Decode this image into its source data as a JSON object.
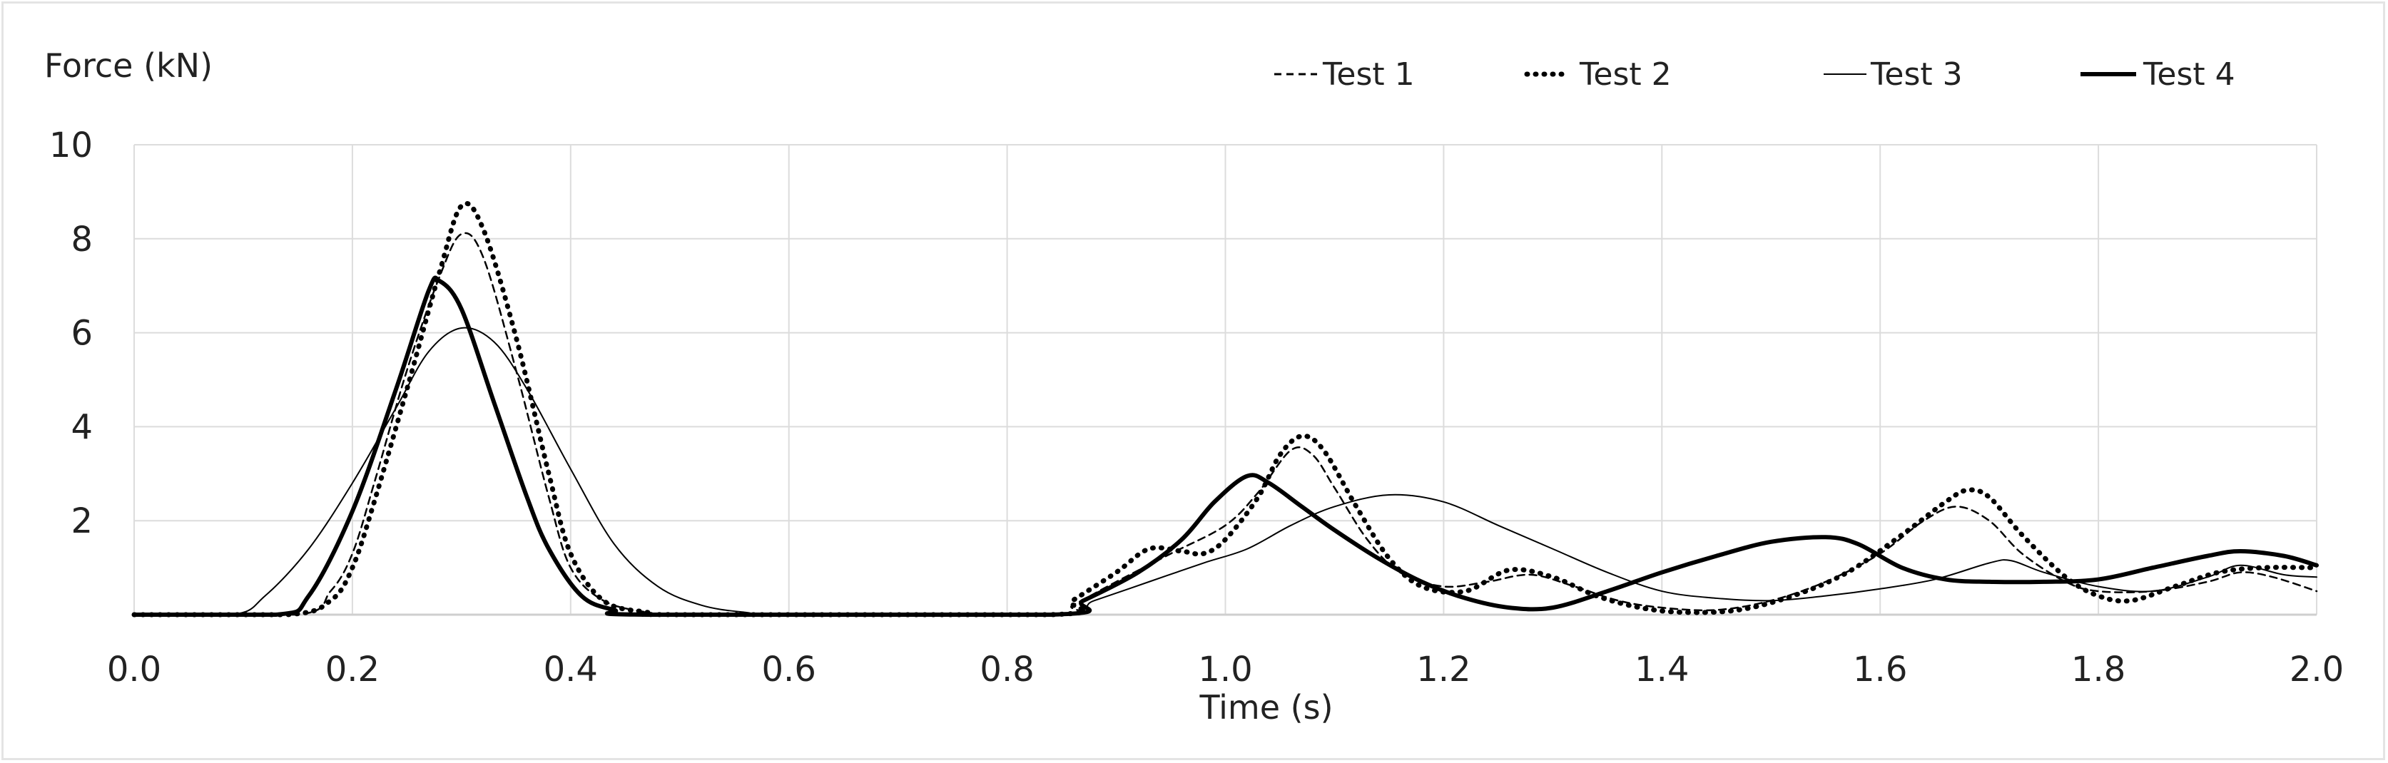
{
  "chart_data": {
    "type": "line",
    "title": "",
    "ylabel": "Force (kN)",
    "xlabel": "Time (s)",
    "xlim": [
      0.0,
      2.0
    ],
    "ylim": [
      0,
      10
    ],
    "x_ticks": [
      "0.0",
      "0.2",
      "0.4",
      "0.6",
      "0.8",
      "1.0",
      "1.2",
      "1.4",
      "1.6",
      "1.8",
      "2.0"
    ],
    "y_ticks": [
      "2",
      "4",
      "6",
      "8",
      "10"
    ],
    "grid": true,
    "legend_position": "top",
    "series": [
      {
        "name": "Test 1",
        "style": "dashed",
        "points": [
          [
            0.0,
            0
          ],
          [
            0.15,
            0
          ],
          [
            0.18,
            0.5
          ],
          [
            0.2,
            1.3
          ],
          [
            0.22,
            2.8
          ],
          [
            0.25,
            5.2
          ],
          [
            0.28,
            7.2
          ],
          [
            0.3,
            8.1
          ],
          [
            0.32,
            7.6
          ],
          [
            0.35,
            5.2
          ],
          [
            0.38,
            2.5
          ],
          [
            0.4,
            1.0
          ],
          [
            0.43,
            0.3
          ],
          [
            0.47,
            0.05
          ],
          [
            0.5,
            0
          ],
          [
            0.84,
            0
          ],
          [
            0.86,
            0.2
          ],
          [
            0.9,
            0.7
          ],
          [
            0.95,
            1.3
          ],
          [
            1.0,
            1.9
          ],
          [
            1.03,
            2.6
          ],
          [
            1.06,
            3.5
          ],
          [
            1.08,
            3.4
          ],
          [
            1.1,
            2.7
          ],
          [
            1.13,
            1.6
          ],
          [
            1.16,
            0.9
          ],
          [
            1.2,
            0.6
          ],
          [
            1.24,
            0.7
          ],
          [
            1.28,
            0.85
          ],
          [
            1.32,
            0.6
          ],
          [
            1.36,
            0.3
          ],
          [
            1.4,
            0.15
          ],
          [
            1.45,
            0.1
          ],
          [
            1.5,
            0.3
          ],
          [
            1.55,
            0.7
          ],
          [
            1.6,
            1.3
          ],
          [
            1.64,
            2.0
          ],
          [
            1.67,
            2.3
          ],
          [
            1.7,
            2.0
          ],
          [
            1.73,
            1.3
          ],
          [
            1.77,
            0.7
          ],
          [
            1.8,
            0.5
          ],
          [
            1.85,
            0.5
          ],
          [
            1.9,
            0.7
          ],
          [
            1.93,
            0.9
          ],
          [
            1.96,
            0.8
          ],
          [
            2.0,
            0.5
          ]
        ]
      },
      {
        "name": "Test 2",
        "style": "dotted",
        "points": [
          [
            0.0,
            0
          ],
          [
            0.14,
            0
          ],
          [
            0.18,
            0.3
          ],
          [
            0.2,
            1.0
          ],
          [
            0.22,
            2.4
          ],
          [
            0.25,
            4.8
          ],
          [
            0.28,
            7.3
          ],
          [
            0.3,
            8.7
          ],
          [
            0.32,
            8.2
          ],
          [
            0.35,
            5.9
          ],
          [
            0.38,
            3.0
          ],
          [
            0.4,
            1.3
          ],
          [
            0.43,
            0.3
          ],
          [
            0.47,
            0.05
          ],
          [
            0.5,
            0
          ],
          [
            0.84,
            0
          ],
          [
            0.86,
            0.3
          ],
          [
            0.9,
            0.9
          ],
          [
            0.93,
            1.4
          ],
          [
            0.96,
            1.35
          ],
          [
            0.98,
            1.3
          ],
          [
            1.0,
            1.6
          ],
          [
            1.03,
            2.5
          ],
          [
            1.05,
            3.4
          ],
          [
            1.07,
            3.8
          ],
          [
            1.09,
            3.5
          ],
          [
            1.12,
            2.3
          ],
          [
            1.15,
            1.2
          ],
          [
            1.18,
            0.6
          ],
          [
            1.22,
            0.5
          ],
          [
            1.26,
            0.95
          ],
          [
            1.3,
            0.8
          ],
          [
            1.34,
            0.4
          ],
          [
            1.38,
            0.15
          ],
          [
            1.42,
            0.05
          ],
          [
            1.47,
            0.1
          ],
          [
            1.52,
            0.4
          ],
          [
            1.57,
            0.9
          ],
          [
            1.62,
            1.7
          ],
          [
            1.66,
            2.4
          ],
          [
            1.68,
            2.65
          ],
          [
            1.7,
            2.5
          ],
          [
            1.73,
            1.7
          ],
          [
            1.77,
            0.8
          ],
          [
            1.8,
            0.4
          ],
          [
            1.83,
            0.3
          ],
          [
            1.87,
            0.6
          ],
          [
            1.91,
            0.9
          ],
          [
            1.95,
            1.0
          ],
          [
            2.0,
            1.0
          ]
        ]
      },
      {
        "name": "Test 3",
        "style": "thin",
        "points": [
          [
            0.0,
            0
          ],
          [
            0.09,
            0
          ],
          [
            0.12,
            0.4
          ],
          [
            0.16,
            1.4
          ],
          [
            0.2,
            2.8
          ],
          [
            0.24,
            4.4
          ],
          [
            0.27,
            5.6
          ],
          [
            0.3,
            6.1
          ],
          [
            0.33,
            5.8
          ],
          [
            0.36,
            4.8
          ],
          [
            0.4,
            3.1
          ],
          [
            0.44,
            1.5
          ],
          [
            0.48,
            0.6
          ],
          [
            0.52,
            0.2
          ],
          [
            0.56,
            0.05
          ],
          [
            0.6,
            0
          ],
          [
            0.84,
            0
          ],
          [
            0.88,
            0.3
          ],
          [
            0.93,
            0.7
          ],
          [
            0.98,
            1.1
          ],
          [
            1.02,
            1.4
          ],
          [
            1.06,
            1.9
          ],
          [
            1.1,
            2.3
          ],
          [
            1.15,
            2.55
          ],
          [
            1.2,
            2.4
          ],
          [
            1.25,
            1.9
          ],
          [
            1.3,
            1.4
          ],
          [
            1.35,
            0.9
          ],
          [
            1.4,
            0.5
          ],
          [
            1.45,
            0.35
          ],
          [
            1.5,
            0.3
          ],
          [
            1.55,
            0.4
          ],
          [
            1.6,
            0.55
          ],
          [
            1.65,
            0.75
          ],
          [
            1.7,
            1.1
          ],
          [
            1.72,
            1.15
          ],
          [
            1.75,
            0.9
          ],
          [
            1.8,
            0.6
          ],
          [
            1.85,
            0.5
          ],
          [
            1.9,
            0.8
          ],
          [
            1.93,
            1.05
          ],
          [
            1.97,
            0.85
          ],
          [
            2.0,
            0.8
          ]
        ]
      },
      {
        "name": "Test 4",
        "style": "thick",
        "points": [
          [
            0.0,
            0
          ],
          [
            0.13,
            0
          ],
          [
            0.16,
            0.4
          ],
          [
            0.2,
            2.2
          ],
          [
            0.24,
            4.8
          ],
          [
            0.27,
            6.9
          ],
          [
            0.28,
            7.1
          ],
          [
            0.3,
            6.5
          ],
          [
            0.33,
            4.5
          ],
          [
            0.36,
            2.5
          ],
          [
            0.38,
            1.4
          ],
          [
            0.41,
            0.4
          ],
          [
            0.44,
            0.1
          ],
          [
            0.47,
            0
          ],
          [
            0.84,
            0
          ],
          [
            0.87,
            0.3
          ],
          [
            0.92,
            0.9
          ],
          [
            0.96,
            1.6
          ],
          [
            0.99,
            2.4
          ],
          [
            1.02,
            2.95
          ],
          [
            1.04,
            2.8
          ],
          [
            1.07,
            2.3
          ],
          [
            1.1,
            1.8
          ],
          [
            1.14,
            1.2
          ],
          [
            1.18,
            0.7
          ],
          [
            1.22,
            0.35
          ],
          [
            1.26,
            0.15
          ],
          [
            1.3,
            0.15
          ],
          [
            1.35,
            0.5
          ],
          [
            1.4,
            0.9
          ],
          [
            1.45,
            1.25
          ],
          [
            1.5,
            1.55
          ],
          [
            1.55,
            1.65
          ],
          [
            1.58,
            1.5
          ],
          [
            1.62,
            1.0
          ],
          [
            1.66,
            0.75
          ],
          [
            1.7,
            0.7
          ],
          [
            1.75,
            0.7
          ],
          [
            1.8,
            0.75
          ],
          [
            1.85,
            1.0
          ],
          [
            1.9,
            1.25
          ],
          [
            1.93,
            1.35
          ],
          [
            1.97,
            1.25
          ],
          [
            2.0,
            1.05
          ]
        ]
      }
    ]
  }
}
